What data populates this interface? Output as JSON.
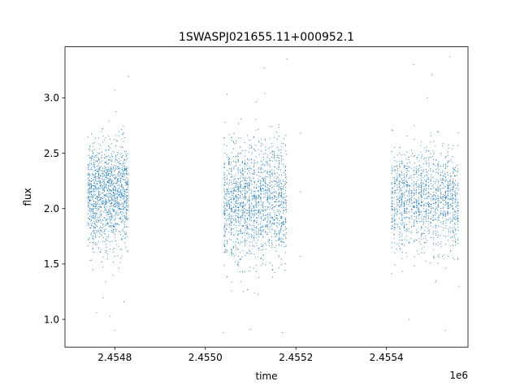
{
  "chart_data": {
    "type": "scatter",
    "title": "1SWASPJ021655.11+000952.1",
    "xlabel": "time",
    "ylabel": "flux",
    "x_offset_label": "1e6",
    "x_multiplier": 1000000,
    "xlim": [
      2.45469,
      2.45558
    ],
    "ylim": [
      0.75,
      3.46
    ],
    "xticks": [
      2.4548,
      2.455,
      2.4552,
      2.4554
    ],
    "xtick_labels": [
      "2.4548",
      "2.4550",
      "2.4552",
      "2.4554"
    ],
    "yticks": [
      1.0,
      1.5,
      2.0,
      2.5,
      3.0
    ],
    "ytick_labels": [
      "1.0",
      "1.5",
      "2.0",
      "2.5",
      "3.0"
    ],
    "grid": false,
    "legend": "none",
    "marker_color": "#1f77b4",
    "series": [
      {
        "clusters": [
          {
            "x_range": [
              2.45474,
              2.45483
            ],
            "y_center": 2.12,
            "y_spread": 0.23,
            "count": 1400
          },
          {
            "x_range": [
              2.45504,
              2.45518
            ],
            "y_center": 2.07,
            "y_spread": 0.27,
            "count": 1700
          },
          {
            "x_range": [
              2.45541,
              2.45556
            ],
            "y_center": 2.08,
            "y_spread": 0.22,
            "count": 1400
          }
        ],
        "points": [
          {
            "x": 2.45479,
            "y": 1.03
          },
          {
            "x": 2.45476,
            "y": 1.06
          },
          {
            "x": 2.4548,
            "y": 0.9
          },
          {
            "x": 2.45482,
            "y": 1.16
          },
          {
            "x": 2.4548,
            "y": 3.07
          },
          {
            "x": 2.45483,
            "y": 3.19
          },
          {
            "x": 2.4551,
            "y": 0.91
          },
          {
            "x": 2.45504,
            "y": 0.88
          },
          {
            "x": 2.45513,
            "y": 3.27
          },
          {
            "x": 2.45517,
            "y": 0.88
          },
          {
            "x": 2.45518,
            "y": 3.35
          },
          {
            "x": 2.45521,
            "y": 2.68
          },
          {
            "x": 2.45521,
            "y": 2.15
          },
          {
            "x": 2.45521,
            "y": 1.57
          },
          {
            "x": 2.45543,
            "y": 2.55
          },
          {
            "x": 2.45543,
            "y": 2.3
          },
          {
            "x": 2.45543,
            "y": 1.63
          },
          {
            "x": 2.45546,
            "y": 3.3
          },
          {
            "x": 2.45545,
            "y": 1.0
          },
          {
            "x": 2.4555,
            "y": 3.21
          },
          {
            "x": 2.45554,
            "y": 3.37
          },
          {
            "x": 2.45553,
            "y": 0.9
          },
          {
            "x": 2.45556,
            "y": 1.3
          },
          {
            "x": 2.45549,
            "y": 3.0
          }
        ]
      }
    ]
  }
}
